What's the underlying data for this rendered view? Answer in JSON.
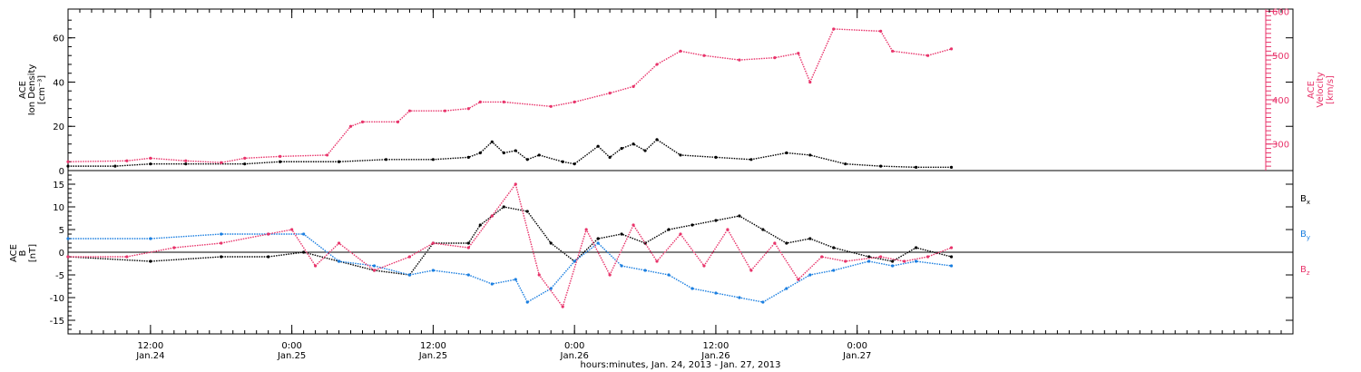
{
  "x_axis": {
    "title": "hours:minutes, Jan. 24, 2013 - Jan. 27, 2013",
    "start": "2013-01-24T05:00",
    "end": "2013-01-28T13:00",
    "ticks": [
      {
        "time": "2013-01-24T12:00",
        "line1": "12:00",
        "line2": "Jan.24"
      },
      {
        "time": "2013-01-25T00:00",
        "line1": "0:00",
        "line2": "Jan.25"
      },
      {
        "time": "2013-01-25T12:00",
        "line1": "12:00",
        "line2": "Jan.25"
      },
      {
        "time": "2013-01-26T00:00",
        "line1": "0:00",
        "line2": "Jan.26"
      },
      {
        "time": "2013-01-26T12:00",
        "line1": "12:00",
        "line2": "Jan.26"
      },
      {
        "time": "2013-01-27T00:00",
        "line1": "0:00",
        "line2": "Jan.27"
      }
    ]
  },
  "top_panel": {
    "left_label": [
      "ACE",
      "Ion Density",
      "[cm⁻³]"
    ],
    "right_label": [
      "ACE",
      "Velocity",
      "[km/s]"
    ],
    "left_ticks": [
      "0",
      "20",
      "40",
      "60"
    ],
    "right_ticks": [
      "300",
      "400",
      "500",
      "600"
    ]
  },
  "bottom_panel": {
    "left_label": [
      "ACE",
      "B",
      "[nT]"
    ],
    "left_ticks": [
      "-15",
      "-10",
      "-5",
      "0",
      "5",
      "10",
      "15"
    ],
    "legend": [
      {
        "text": "B",
        "sub": "x",
        "color": "#000000"
      },
      {
        "text": "B",
        "sub": "y",
        "color": "#1a7ee0"
      },
      {
        "text": "B",
        "sub": "z",
        "color": "#e8336a"
      }
    ]
  },
  "colors": {
    "density": "#000000",
    "velocity": "#e8336a",
    "bx": "#000000",
    "by": "#1a7ee0",
    "bz": "#e8336a"
  },
  "chart_data": [
    {
      "type": "scatter",
      "ylim": [
        0,
        73
      ],
      "y2lim": [
        240,
        605
      ],
      "series": [
        {
          "name": "Ion Density",
          "axis": "left",
          "x": [
            "2013-01-24T05:00",
            "2013-01-24T09:00",
            "2013-01-24T12:00",
            "2013-01-24T15:00",
            "2013-01-24T20:00",
            "2013-01-24T23:00",
            "2013-01-25T04:00",
            "2013-01-25T08:00",
            "2013-01-25T12:00",
            "2013-01-25T15:00",
            "2013-01-25T16:00",
            "2013-01-25T17:00",
            "2013-01-25T18:00",
            "2013-01-25T19:00",
            "2013-01-25T20:00",
            "2013-01-25T21:00",
            "2013-01-25T23:00",
            "2013-01-26T00:00",
            "2013-01-26T02:00",
            "2013-01-26T03:00",
            "2013-01-26T04:00",
            "2013-01-26T05:00",
            "2013-01-26T06:00",
            "2013-01-26T07:00",
            "2013-01-26T09:00",
            "2013-01-26T12:00",
            "2013-01-26T15:00",
            "2013-01-26T18:00",
            "2013-01-26T20:00",
            "2013-01-26T23:00",
            "2013-01-27T02:00",
            "2013-01-27T05:00",
            "2013-01-27T08:00"
          ],
          "y": [
            2,
            2,
            3,
            3,
            3,
            4,
            4,
            5,
            5,
            6,
            8,
            13,
            8,
            9,
            5,
            7,
            4,
            3,
            11,
            6,
            10,
            12,
            9,
            14,
            7,
            6,
            5,
            8,
            7,
            3,
            2,
            1.5,
            1.5
          ]
        },
        {
          "name": "Velocity",
          "axis": "right",
          "x": [
            "2013-01-24T05:00",
            "2013-01-24T10:00",
            "2013-01-24T12:00",
            "2013-01-24T15:00",
            "2013-01-24T18:00",
            "2013-01-24T20:00",
            "2013-01-24T23:00",
            "2013-01-25T03:00",
            "2013-01-25T05:00",
            "2013-01-25T06:00",
            "2013-01-25T09:00",
            "2013-01-25T10:00",
            "2013-01-25T13:00",
            "2013-01-25T15:00",
            "2013-01-25T16:00",
            "2013-01-25T18:00",
            "2013-01-25T22:00",
            "2013-01-26T00:00",
            "2013-01-26T03:00",
            "2013-01-26T05:00",
            "2013-01-26T07:00",
            "2013-01-26T09:00",
            "2013-01-26T11:00",
            "2013-01-26T14:00",
            "2013-01-26T17:00",
            "2013-01-26T19:00",
            "2013-01-26T20:00",
            "2013-01-26T22:00",
            "2013-01-27T02:00",
            "2013-01-27T03:00",
            "2013-01-27T06:00",
            "2013-01-27T08:00"
          ],
          "y": [
            260,
            262,
            268,
            262,
            258,
            268,
            272,
            275,
            340,
            350,
            350,
            375,
            375,
            380,
            395,
            395,
            385,
            395,
            415,
            430,
            480,
            510,
            500,
            490,
            495,
            505,
            440,
            560,
            555,
            510,
            500,
            515
          ]
        }
      ]
    },
    {
      "type": "scatter",
      "ylim": [
        -18,
        18
      ],
      "series": [
        {
          "name": "Bx",
          "x": [
            "2013-01-24T05:00",
            "2013-01-24T12:00",
            "2013-01-24T18:00",
            "2013-01-24T22:00",
            "2013-01-25T01:00",
            "2013-01-25T04:00",
            "2013-01-25T07:00",
            "2013-01-25T10:00",
            "2013-01-25T12:00",
            "2013-01-25T15:00",
            "2013-01-25T16:00",
            "2013-01-25T17:00",
            "2013-01-25T18:00",
            "2013-01-25T20:00",
            "2013-01-25T22:00",
            "2013-01-26T00:00",
            "2013-01-26T02:00",
            "2013-01-26T04:00",
            "2013-01-26T06:00",
            "2013-01-26T08:00",
            "2013-01-26T10:00",
            "2013-01-26T12:00",
            "2013-01-26T14:00",
            "2013-01-26T16:00",
            "2013-01-26T18:00",
            "2013-01-26T20:00",
            "2013-01-26T22:00",
            "2013-01-27T01:00",
            "2013-01-27T03:00",
            "2013-01-27T05:00",
            "2013-01-27T08:00"
          ],
          "y": [
            -1,
            -2,
            -1,
            -1,
            0,
            -2,
            -4,
            -5,
            2,
            2,
            6,
            8,
            10,
            9,
            2,
            -2,
            3,
            4,
            2,
            5,
            6,
            7,
            8,
            5,
            2,
            3,
            1,
            -1,
            -2,
            1,
            -1
          ]
        },
        {
          "name": "By",
          "x": [
            "2013-01-24T05:00",
            "2013-01-24T12:00",
            "2013-01-24T18:00",
            "2013-01-24T22:00",
            "2013-01-25T01:00",
            "2013-01-25T04:00",
            "2013-01-25T07:00",
            "2013-01-25T10:00",
            "2013-01-25T12:00",
            "2013-01-25T15:00",
            "2013-01-25T17:00",
            "2013-01-25T19:00",
            "2013-01-25T20:00",
            "2013-01-25T22:00",
            "2013-01-26T00:00",
            "2013-01-26T02:00",
            "2013-01-26T04:00",
            "2013-01-26T06:00",
            "2013-01-26T08:00",
            "2013-01-26T10:00",
            "2013-01-26T12:00",
            "2013-01-26T14:00",
            "2013-01-26T16:00",
            "2013-01-26T18:00",
            "2013-01-26T20:00",
            "2013-01-26T22:00",
            "2013-01-27T01:00",
            "2013-01-27T03:00",
            "2013-01-27T05:00",
            "2013-01-27T08:00"
          ],
          "y": [
            3,
            3,
            4,
            4,
            4,
            -2,
            -3,
            -5,
            -4,
            -5,
            -7,
            -6,
            -11,
            -8,
            -2,
            2,
            -3,
            -4,
            -5,
            -8,
            -9,
            -10,
            -11,
            -8,
            -5,
            -4,
            -2,
            -3,
            -2,
            -3
          ]
        },
        {
          "name": "Bz",
          "x": [
            "2013-01-24T05:00",
            "2013-01-24T10:00",
            "2013-01-24T14:00",
            "2013-01-24T18:00",
            "2013-01-24T22:00",
            "2013-01-25T00:00",
            "2013-01-25T02:00",
            "2013-01-25T04:00",
            "2013-01-25T07:00",
            "2013-01-25T10:00",
            "2013-01-25T12:00",
            "2013-01-25T15:00",
            "2013-01-25T17:00",
            "2013-01-25T19:00",
            "2013-01-25T21:00",
            "2013-01-25T23:00",
            "2013-01-26T01:00",
            "2013-01-26T03:00",
            "2013-01-26T05:00",
            "2013-01-26T07:00",
            "2013-01-26T09:00",
            "2013-01-26T11:00",
            "2013-01-26T13:00",
            "2013-01-26T15:00",
            "2013-01-26T17:00",
            "2013-01-26T19:00",
            "2013-01-26T21:00",
            "2013-01-26T23:00",
            "2013-01-27T02:00",
            "2013-01-27T04:00",
            "2013-01-27T06:00",
            "2013-01-27T08:00"
          ],
          "y": [
            -1,
            -1,
            1,
            2,
            4,
            5,
            -3,
            2,
            -4,
            -1,
            2,
            1,
            8,
            15,
            -5,
            -12,
            5,
            -5,
            6,
            -2,
            4,
            -3,
            5,
            -4,
            2,
            -6,
            -1,
            -2,
            -1,
            -2,
            -1,
            1
          ]
        }
      ]
    }
  ]
}
